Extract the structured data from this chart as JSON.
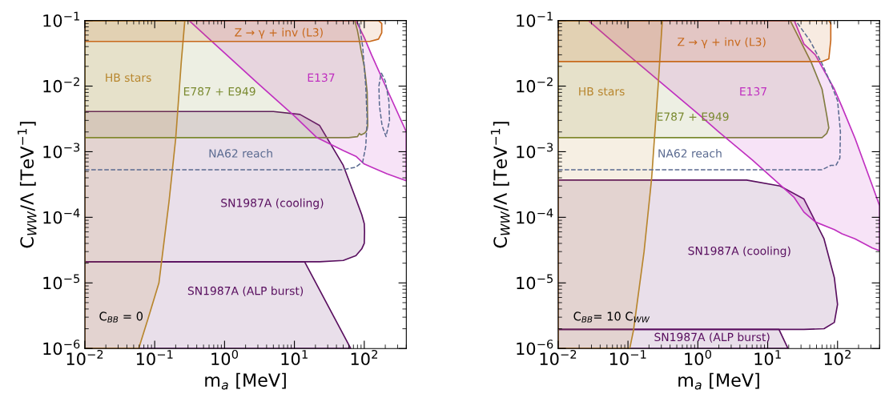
{
  "chart_data": [
    {
      "type": "area",
      "xlabel": "m$_{a}$ [MeV]",
      "ylabel": "C$_{WW}$/Λ [TeV$^{−1}$]",
      "log": "xy",
      "xlim": [
        0.01,
        400
      ],
      "ylim": [
        1e-06,
        0.1
      ],
      "xticks": [
        {
          "value": 0.01,
          "label": "10$^{−2}$"
        },
        {
          "value": 0.1,
          "label": "10$^{−1}$"
        },
        {
          "value": 1,
          "label": "10$^{0}$"
        },
        {
          "value": 10,
          "label": "10$^{1}$"
        },
        {
          "value": 100,
          "label": "10$^{2}$"
        }
      ],
      "yticks": [
        {
          "value": 1e-06,
          "label": "10$^{−6}$"
        },
        {
          "value": 1e-05,
          "label": "10$^{−5}$"
        },
        {
          "value": 0.0001,
          "label": "10$^{−4}$"
        },
        {
          "value": 0.001,
          "label": "10$^{−3}$"
        },
        {
          "value": 0.01,
          "label": "10$^{−2}$"
        },
        {
          "value": 0.1,
          "label": "10$^{−1}$"
        }
      ],
      "series": [
        {
          "name": "SN1987A (ALP burst)",
          "color": "#5a1060",
          "x": [
            0.01,
            14,
            64,
            0.01
          ],
          "values": [
            2.1e-05,
            2.1e-05,
            1e-06,
            1e-06
          ]
        },
        {
          "name": "SN1987A (cooling)",
          "color": "#5a1060",
          "x": [
            0.01,
            5,
            12,
            23,
            50,
            76,
            92,
            100,
            101,
            100,
            92,
            76,
            50,
            23,
            12,
            5,
            0.01
          ],
          "values": [
            0.0041,
            0.0041,
            0.0037,
            0.0025,
            0.00062,
            0.00019,
            0.00011,
            8e-05,
            6e-05,
            4e-05,
            3.3e-05,
            2.6e-05,
            2.2e-05,
            2.1e-05,
            2.1e-05,
            2.1e-05,
            2.1e-05
          ]
        },
        {
          "name": "E787 + E949",
          "color": "#7a8a30",
          "x": [
            0.01,
            73,
            80,
            85,
            90,
            100,
            105,
            110,
            112,
            110,
            105,
            100,
            90,
            85,
            80,
            60,
            0.01
          ],
          "values": [
            0.1,
            0.1,
            0.07,
            0.05,
            0.035,
            0.02,
            0.013,
            0.008,
            0.0025,
            0.0022,
            0.002,
            0.0019,
            0.0018,
            0.0019,
            0.0017,
            0.00164,
            0.00164
          ]
        },
        {
          "name": "E137",
          "color": "#c030c0",
          "x": [
            0.31,
            76,
            100,
            127,
            211,
            400,
            400,
            211,
            127,
            100,
            76,
            50,
            21,
            10,
            3,
            1,
            0.31
          ],
          "values": [
            0.1,
            0.1,
            0.055,
            0.03,
            0.009,
            0.002,
            0.00036,
            0.00046,
            0.00058,
            0.00065,
            0.00085,
            0.00104,
            0.00164,
            0.0035,
            0.011,
            0.032,
            0.1
          ]
        },
        {
          "name": "HB stars",
          "color": "#b8862e",
          "x": [
            0.01,
            0.27,
            0.24,
            0.2,
            0.16,
            0.115,
            0.08,
            0.059,
            0.01
          ],
          "values": [
            0.1,
            0.1,
            0.023,
            0.0016,
            0.00017,
            1e-05,
            2.8e-06,
            1e-06,
            1e-06
          ]
        },
        {
          "name": "Z → γ + inv (L3)",
          "color": "#c8691c",
          "x": [
            0.01,
            160,
            178,
            178,
            160,
            120,
            0.01
          ],
          "values": [
            0.1,
            0.1,
            0.09,
            0.065,
            0.052,
            0.048,
            0.048
          ]
        },
        {
          "name": "NA62 reach",
          "type": "line",
          "line_style": "dashed",
          "color": "#5a6a90",
          "x": [
            0.01,
            50,
            75,
            95,
            105,
            110,
            105,
            95,
            83
          ],
          "values": [
            0.00053,
            0.00053,
            0.00058,
            0.0007,
            0.0012,
            0.003,
            0.01,
            0.04,
            0.1
          ]
        },
        {
          "type": "line",
          "line_style": "dashed",
          "color": "#5a6a90",
          "x": [
            175,
            200,
            225,
            230,
            205,
            180,
            165,
            162,
            174
          ],
          "values": [
            0.016,
            0.012,
            0.006,
            0.003,
            0.0017,
            0.0025,
            0.005,
            0.01,
            0.0158
          ]
        }
      ],
      "annotations": [
        "C$_{BB}$ = 0"
      ]
    },
    {
      "type": "area",
      "xlabel": "m$_{a}$ [MeV]",
      "ylabel": "C$_{WW}$/Λ [TeV$^{−1}$]",
      "log": "xy",
      "xlim": [
        0.01,
        400
      ],
      "ylim": [
        1e-06,
        0.1
      ],
      "xticks": [
        {
          "value": 0.01,
          "label": "10$^{−2}$"
        },
        {
          "value": 0.1,
          "label": "10$^{−1}$"
        },
        {
          "value": 1,
          "label": "10$^{0}$"
        },
        {
          "value": 10,
          "label": "10$^{1}$"
        },
        {
          "value": 100,
          "label": "10$^{2}$"
        }
      ],
      "yticks": [
        {
          "value": 1e-06,
          "label": "10$^{−6}$"
        },
        {
          "value": 1e-05,
          "label": "10$^{−5}$"
        },
        {
          "value": 0.0001,
          "label": "10$^{−4}$"
        },
        {
          "value": 0.001,
          "label": "10$^{−3}$"
        },
        {
          "value": 0.01,
          "label": "10$^{−2}$"
        },
        {
          "value": 0.1,
          "label": "10$^{−1}$"
        }
      ],
      "series": [
        {
          "name": "SN1987A (ALP burst)",
          "color": "#5a1060",
          "x": [
            0.01,
            14.5,
            19.5,
            0.01
          ],
          "values": [
            1.95e-06,
            1.95e-06,
            1e-06,
            1e-06
          ]
        },
        {
          "name": "SN1987A (cooling)",
          "color": "#5a1060",
          "x": [
            0.01,
            5,
            15,
            33,
            64,
            90,
            100,
            90,
            64,
            33,
            0.01
          ],
          "values": [
            0.00037,
            0.00037,
            0.0003,
            0.00019,
            4.7e-05,
            1.2e-05,
            4.7e-06,
            2.5e-06,
            2e-06,
            1.95e-06,
            1.95e-06
          ]
        },
        {
          "name": "E787 + E949",
          "color": "#7a8a30",
          "x": [
            0.01,
            21,
            42,
            60,
            70,
            75,
            70,
            60,
            0.01
          ],
          "values": [
            0.1,
            0.1,
            0.023,
            0.009,
            0.0036,
            0.0023,
            0.0019,
            0.00164,
            0.00164
          ]
        },
        {
          "name": "E137",
          "color": "#c030c0",
          "x": [
            0.027,
            24,
            33,
            48,
            90,
            116,
            178,
            316,
            400,
            400,
            316,
            178,
            116,
            90,
            48,
            33,
            24,
            6,
            2,
            1,
            0.1,
            0.027
          ],
          "values": [
            0.1,
            0.1,
            0.044,
            0.03,
            0.009,
            0.0048,
            0.0016,
            0.0003,
            0.00015,
            3.1e-05,
            3.4e-05,
            4.7e-05,
            5.6e-05,
            6.5e-05,
            8.5e-05,
            0.00012,
            0.0002,
            0.00075,
            0.002,
            0.0038,
            0.03,
            0.1
          ]
        },
        {
          "name": "HB stars",
          "color": "#b8862e",
          "x": [
            0.01,
            0.31,
            0.27,
            0.218,
            0.17,
            0.12,
            0.106,
            0.01
          ],
          "values": [
            0.1,
            0.1,
            0.01,
            0.00039,
            3e-05,
            1.9e-06,
            1e-06,
            1e-06
          ]
        },
        {
          "name": "Z → γ + inv (L3)",
          "color": "#c8691c",
          "x": [
            0.01,
            75,
            80,
            80,
            75,
            60,
            0.01
          ],
          "values": [
            0.1,
            0.1,
            0.09,
            0.05,
            0.026,
            0.0237,
            0.0237
          ]
        },
        {
          "name": "NA62 reach",
          "type": "line",
          "line_style": "dashed",
          "color": "#5a6a90",
          "x": [
            0.01,
            60,
            80,
            95,
            108,
            110,
            100,
            80,
            60,
            40,
            25
          ],
          "values": [
            0.00053,
            0.00053,
            0.00062,
            0.00062,
            0.0008,
            0.002,
            0.006,
            0.011,
            0.022,
            0.05,
            0.1
          ]
        }
      ],
      "annotations": [
        "C$_{BB}$= 10 C$_{WW}$"
      ]
    }
  ]
}
